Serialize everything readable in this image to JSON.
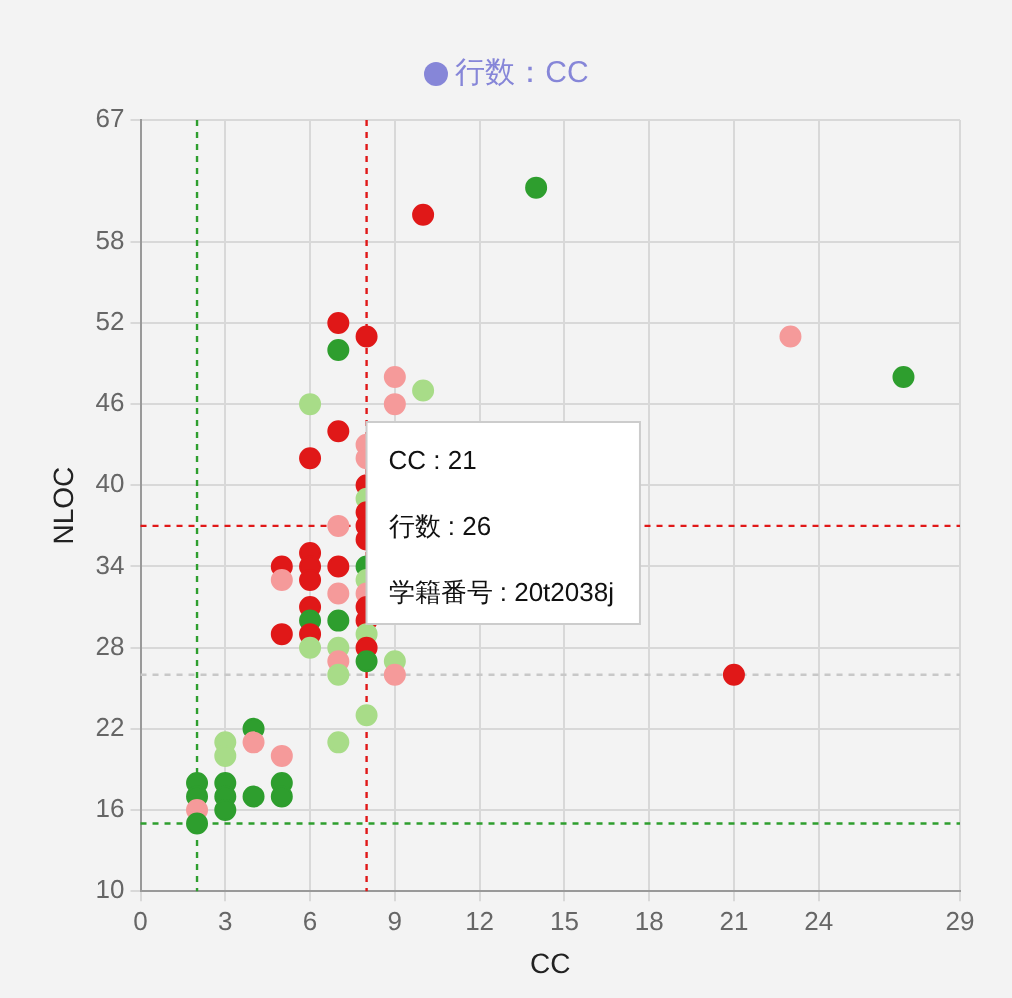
{
  "chart_data": {
    "type": "scatter",
    "xlabel": "CC",
    "ylabel": "NLOC",
    "xlim": [
      0,
      29
    ],
    "xticks": [
      0,
      3,
      6,
      9,
      12,
      15,
      18,
      21,
      24,
      29
    ],
    "ylim": [
      10,
      67
    ],
    "yticks": [
      10,
      16,
      22,
      28,
      34,
      40,
      46,
      52,
      58,
      67
    ],
    "grid": true,
    "legend": "top",
    "marker": "circle",
    "series": [
      {
        "name": "行数：CC",
        "color": "#8686d8",
        "x": [
          7,
          8,
          7,
          9,
          10,
          6,
          9,
          7,
          8,
          6,
          8,
          8,
          8,
          8,
          7,
          8,
          8,
          6,
          6,
          5,
          7,
          8,
          5,
          6,
          8,
          7,
          8,
          6,
          8,
          6,
          7,
          8,
          5,
          6,
          8,
          6,
          7,
          8,
          7,
          8,
          9,
          7,
          9,
          8,
          7,
          4,
          3,
          3,
          4,
          5,
          2,
          3,
          5,
          2,
          3,
          4,
          5,
          2,
          3,
          2,
          10,
          14,
          23,
          27,
          21
        ],
        "values": [
          52,
          51,
          50,
          48,
          47,
          46,
          46,
          44,
          43,
          42,
          42,
          40,
          39,
          38,
          37,
          37,
          36,
          35,
          34,
          34,
          34,
          34,
          33,
          33,
          33,
          32,
          32,
          31,
          31,
          30,
          30,
          30,
          29,
          29,
          29,
          28,
          28,
          28,
          27,
          27,
          27,
          26,
          26,
          23,
          21,
          22,
          21,
          20,
          21,
          20,
          18,
          18,
          18,
          17,
          17,
          17,
          17,
          16,
          16,
          15,
          60,
          62,
          51,
          48,
          26
        ],
        "colors": [
          "#e01818",
          "#e01818",
          "#2e9e2e",
          "#f59a9a",
          "#a8dc88",
          "#a8dc88",
          "#f59a9a",
          "#e01818",
          "#f59a9a",
          "#e01818",
          "#f59a9a",
          "#e01818",
          "#a8dc88",
          "#e01818",
          "#f59a9a",
          "#e01818",
          "#e01818",
          "#e01818",
          "#e01818",
          "#e01818",
          "#e01818",
          "#2e9e2e",
          "#f59a9a",
          "#e01818",
          "#a8dc88",
          "#f59a9a",
          "#f59a9a",
          "#e01818",
          "#e01818",
          "#2e9e2e",
          "#2e9e2e",
          "#e01818",
          "#e01818",
          "#e01818",
          "#a8dc88",
          "#a8dc88",
          "#a8dc88",
          "#e01818",
          "#f59a9a",
          "#2e9e2e",
          "#a8dc88",
          "#a8dc88",
          "#f59a9a",
          "#a8dc88",
          "#a8dc88",
          "#2e9e2e",
          "#a8dc88",
          "#a8dc88",
          "#f59a9a",
          "#f59a9a",
          "#2e9e2e",
          "#2e9e2e",
          "#2e9e2e",
          "#2e9e2e",
          "#2e9e2e",
          "#2e9e2e",
          "#2e9e2e",
          "#f59a9a",
          "#2e9e2e",
          "#2e9e2e",
          "#e01818",
          "#2e9e2e",
          "#f59a9a",
          "#2e9e2e",
          "#e01818"
        ]
      }
    ],
    "ref_lines": [
      {
        "axis": "x",
        "value": 2,
        "color": "#2e9e2e",
        "line_style": "dotted"
      },
      {
        "axis": "y",
        "value": 15,
        "color": "#2e9e2e",
        "line_style": "dotted"
      },
      {
        "axis": "x",
        "value": 8,
        "color": "#e01818",
        "line_style": "dotted"
      },
      {
        "axis": "y",
        "value": 37,
        "color": "#e01818",
        "line_style": "dotted"
      },
      {
        "axis": "y",
        "value": 26,
        "color": "#c8c8c8",
        "line_style": "dotted"
      }
    ],
    "annotations": [
      "CC : 21\n行数 : 26\n学籍番号 : 20t2038j"
    ]
  }
}
